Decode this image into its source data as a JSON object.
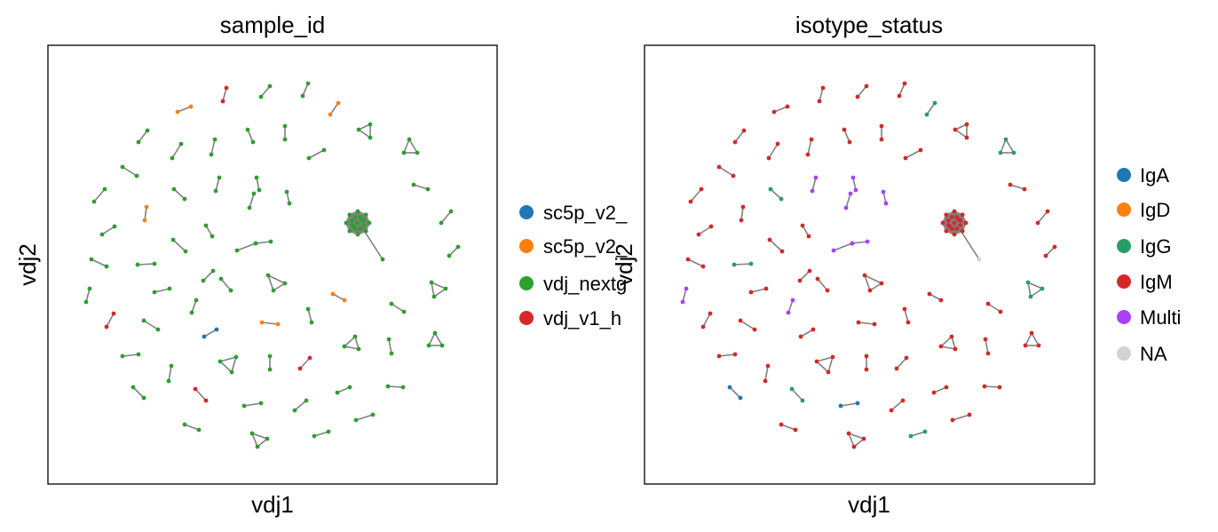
{
  "chart_data": [
    {
      "type": "network-scatter",
      "title": "sample_id",
      "xlabel": "vdj1",
      "ylabel": "vdj2",
      "grid": false,
      "legend_placement": "right",
      "legend": [
        {
          "label": "sc5p_v2_",
          "color": "#1f77b4"
        },
        {
          "label": "sc5p_v2_",
          "color": "#ff7f0e"
        },
        {
          "label": "vdj_nextg",
          "color": "#2ca02c"
        },
        {
          "label": "vdj_v1_h",
          "color": "#d62728"
        }
      ]
    },
    {
      "type": "network-scatter",
      "title": "isotype_status",
      "xlabel": "vdj1",
      "ylabel": "vdj2",
      "grid": false,
      "legend_placement": "right",
      "legend": [
        {
          "label": "IgA",
          "color": "#1f77b4"
        },
        {
          "label": "IgD",
          "color": "#ff7f0e"
        },
        {
          "label": "IgG",
          "color": "#279e68"
        },
        {
          "label": "IgM",
          "color": "#d62728"
        },
        {
          "label": "Multi",
          "color": "#aa40fc"
        },
        {
          "label": "NA",
          "color": "#d3d3d3"
        }
      ]
    }
  ]
}
